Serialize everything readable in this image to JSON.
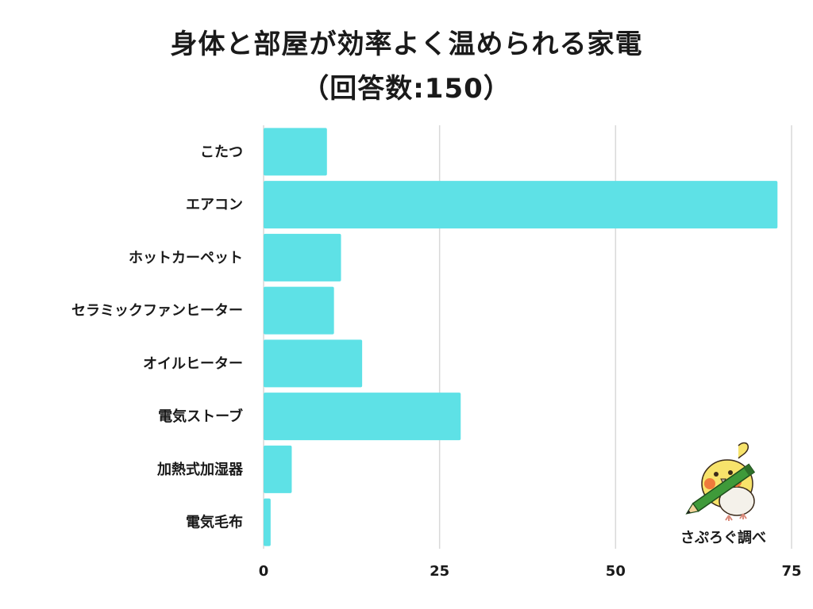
{
  "chart_data": {
    "type": "bar",
    "orientation": "horizontal",
    "title": "身体と部屋が効率よく温められる家電",
    "subtitle": "（回答数:150）",
    "categories": [
      "こたつ",
      "エアコン",
      "ホットカーペット",
      "セラミックファンヒーター",
      "オイルヒーター",
      "電気ストーブ",
      "加熱式加湿器",
      "電気毛布"
    ],
    "values": [
      9,
      73,
      11,
      10,
      14,
      28,
      4,
      1
    ],
    "xlim": [
      0,
      75
    ],
    "xticks": [
      0,
      25,
      50,
      75
    ],
    "grid": true,
    "bar_color": "#5ee1e6",
    "xlabel": "",
    "ylabel": ""
  },
  "credit": "さぷろぐ調べ",
  "colors": {
    "bar": "#5ee1e6",
    "grid": "#d9d9d9",
    "text": "#1a1a1a"
  }
}
